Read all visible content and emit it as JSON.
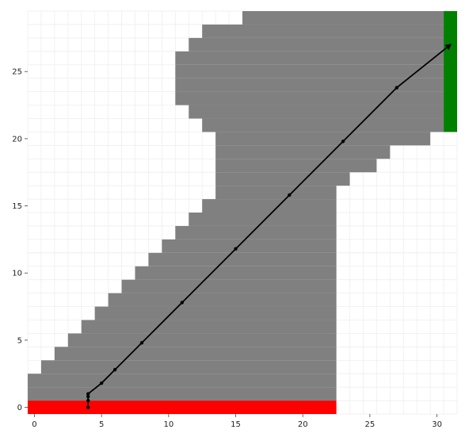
{
  "chart_data": {
    "type": "heatmap",
    "title": "",
    "xlabel": "",
    "ylabel": "",
    "xlim": [
      -0.5,
      31.5
    ],
    "ylim": [
      -0.5,
      29.5
    ],
    "grid": true,
    "xticks": [
      0,
      5,
      10,
      15,
      20,
      25,
      30
    ],
    "yticks": [
      0,
      5,
      10,
      15,
      20,
      25
    ],
    "colors": {
      "free": "#ffffff",
      "occupied": "#808080",
      "start": "#ff0000",
      "goal": "#008000",
      "path": "#000000",
      "grid": "#eeeeee"
    },
    "occupied_rows": [
      {
        "y": 1,
        "x_start": 0,
        "x_end": 22
      },
      {
        "y": 2,
        "x_start": 0,
        "x_end": 22
      },
      {
        "y": 3,
        "x_start": 1,
        "x_end": 22
      },
      {
        "y": 4,
        "x_start": 2,
        "x_end": 22
      },
      {
        "y": 5,
        "x_start": 3,
        "x_end": 22
      },
      {
        "y": 6,
        "x_start": 4,
        "x_end": 22
      },
      {
        "y": 7,
        "x_start": 5,
        "x_end": 22
      },
      {
        "y": 8,
        "x_start": 6,
        "x_end": 22
      },
      {
        "y": 9,
        "x_start": 7,
        "x_end": 22
      },
      {
        "y": 10,
        "x_start": 8,
        "x_end": 22
      },
      {
        "y": 11,
        "x_start": 9,
        "x_end": 22
      },
      {
        "y": 12,
        "x_start": 10,
        "x_end": 22
      },
      {
        "y": 13,
        "x_start": 11,
        "x_end": 22
      },
      {
        "y": 14,
        "x_start": 12,
        "x_end": 22
      },
      {
        "y": 15,
        "x_start": 13,
        "x_end": 22
      },
      {
        "y": 16,
        "x_start": 14,
        "x_end": 22
      },
      {
        "y": 17,
        "x_start": 14,
        "x_end": 23
      },
      {
        "y": 18,
        "x_start": 14,
        "x_end": 25
      },
      {
        "y": 19,
        "x_start": 14,
        "x_end": 26
      },
      {
        "y": 20,
        "x_start": 14,
        "x_end": 29
      },
      {
        "y": 21,
        "x_start": 13,
        "x_end": 30
      },
      {
        "y": 22,
        "x_start": 12,
        "x_end": 30
      },
      {
        "y": 23,
        "x_start": 11,
        "x_end": 30
      },
      {
        "y": 24,
        "x_start": 11,
        "x_end": 30
      },
      {
        "y": 25,
        "x_start": 11,
        "x_end": 30
      },
      {
        "y": 26,
        "x_start": 11,
        "x_end": 30
      },
      {
        "y": 27,
        "x_start": 12,
        "x_end": 30
      },
      {
        "y": 28,
        "x_start": 13,
        "x_end": 30
      },
      {
        "y": 29,
        "x_start": 16,
        "x_end": 30
      }
    ],
    "start_region": {
      "y": 0,
      "x_start": 0,
      "x_end": 22
    },
    "goal_region": {
      "x": 31,
      "y_start": 21,
      "y_end": 29
    },
    "path": {
      "x": [
        4,
        4,
        4,
        4,
        5,
        6,
        8,
        11,
        15,
        19,
        23,
        27,
        31
      ],
      "y": [
        0,
        0.5,
        0.8,
        1,
        1.8,
        2.8,
        4.8,
        7.8,
        11.8,
        15.8,
        19.8,
        23.8,
        27
      ]
    }
  }
}
